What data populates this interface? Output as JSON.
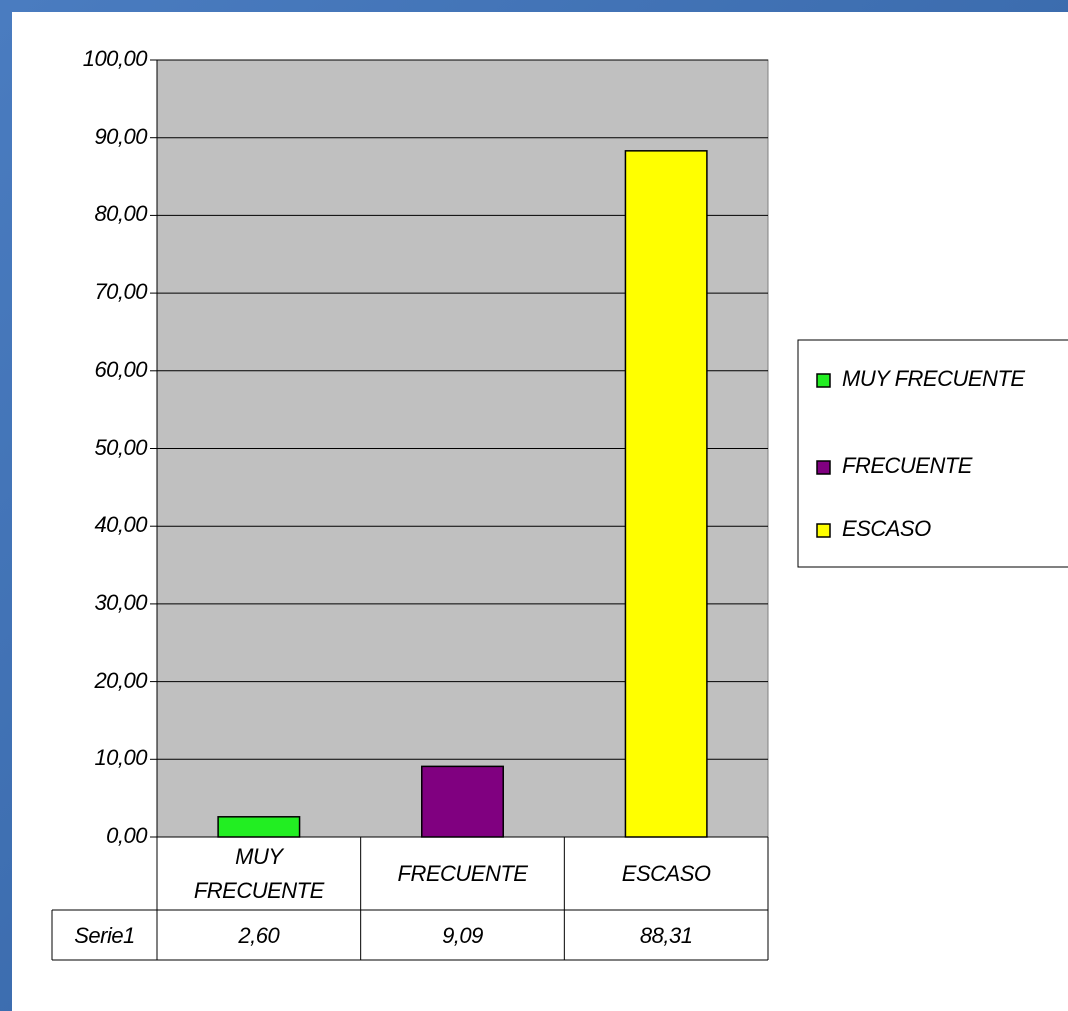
{
  "chart_data": {
    "type": "bar",
    "categories": [
      "MUY FRECUENTE",
      "FRECUENTE",
      "ESCASO"
    ],
    "colors": [
      "#22ee22",
      "#800080",
      "#ffff00"
    ],
    "series": [
      {
        "name": "Serie1",
        "values": [
          2.6,
          9.09,
          88.31
        ],
        "value_labels": [
          "2,60",
          "9,09",
          "88,31"
        ]
      }
    ],
    "ylim": [
      0,
      100
    ],
    "yticks": [
      {
        "value": 0,
        "label": "0,00"
      },
      {
        "value": 10,
        "label": "10,00"
      },
      {
        "value": 20,
        "label": "20,00"
      },
      {
        "value": 30,
        "label": "30,00"
      },
      {
        "value": 40,
        "label": "40,00"
      },
      {
        "value": 50,
        "label": "50,00"
      },
      {
        "value": 60,
        "label": "60,00"
      },
      {
        "value": 70,
        "label": "70,00"
      },
      {
        "value": 80,
        "label": "80,00"
      },
      {
        "value": 90,
        "label": "90,00"
      },
      {
        "value": 100,
        "label": "100,00"
      }
    ],
    "grid": true,
    "legend": "right"
  }
}
